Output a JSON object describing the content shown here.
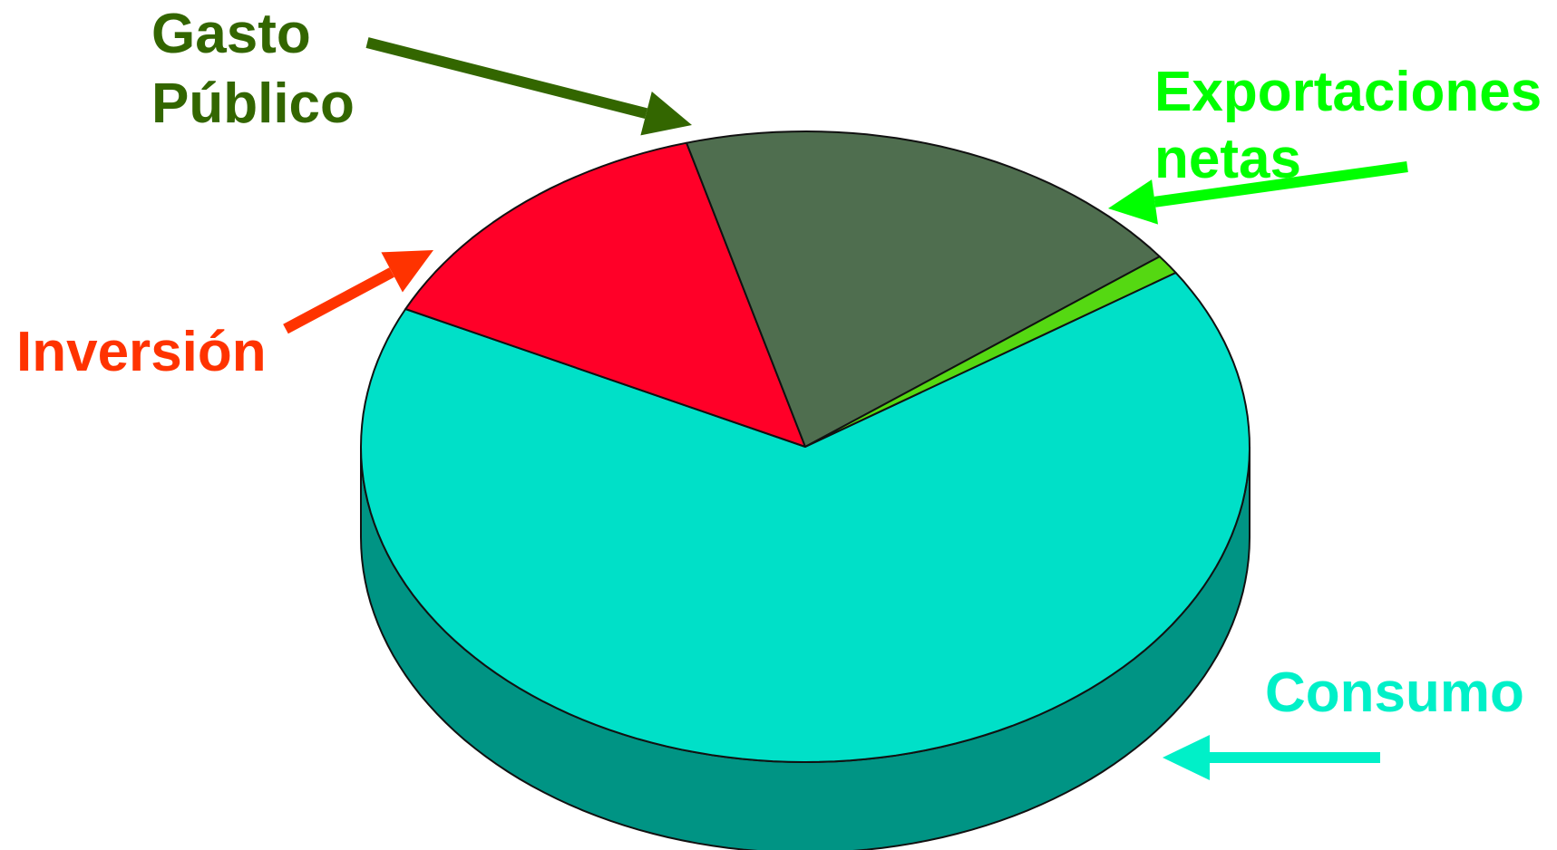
{
  "chart_data": {
    "type": "pie",
    "style": "3d-exploded-perspective",
    "title": "",
    "slices": [
      {
        "label_lines": [
          "Consumo"
        ],
        "value": 66.5,
        "color": "#00E0C8",
        "side_color": "#009484"
      },
      {
        "label_lines": [
          "Inversión"
        ],
        "value": 13.5,
        "color": "#FF0028",
        "side_color": "#A0001A"
      },
      {
        "label_lines": [
          "Gasto",
          "Público"
        ],
        "value": 19.0,
        "color": "#4F6E4F",
        "side_color": "#324732"
      },
      {
        "label_lines": [
          "Exportaciones",
          "netas"
        ],
        "value": 1.0,
        "color": "#55D812",
        "side_color": "#37900C"
      }
    ],
    "label_colors": {
      "Consumo": "#00F0C8",
      "Inversión": "#FF3300",
      "Gasto Público": "#336600",
      "Exportaciones netas": "#00FF00"
    },
    "legend": "none"
  }
}
